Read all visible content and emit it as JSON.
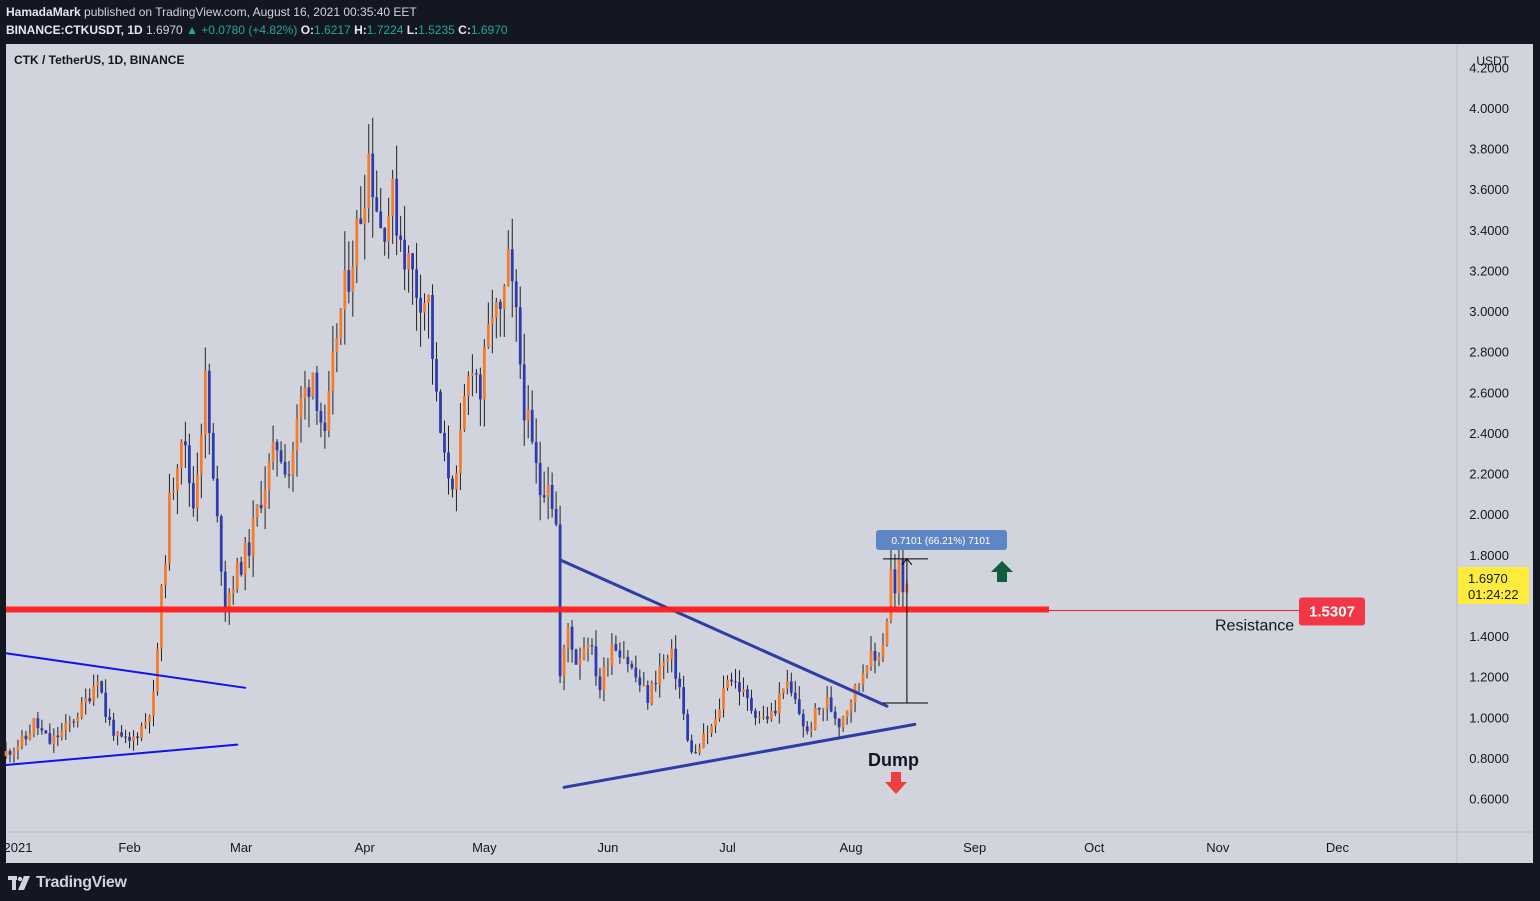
{
  "header": {
    "author": "HamadaMark",
    "published_text": " published on TradingView.com, August 16, 2021 00:35:40 EET",
    "symbol_line": "BINANCE:CTKUSDT, 1D",
    "last": "1.6970",
    "change": "▲ +0.0780 (+4.82%)",
    "o_label": "O:",
    "o": "1.6217",
    "h_label": "H:",
    "h": "1.7224",
    "l_label": "L:",
    "l": "1.5235",
    "c_label": "C:",
    "c": "1.6970"
  },
  "pane_title": "CTK / TetherUS, 1D, BINANCE",
  "footer": {
    "brand": "TradingView"
  },
  "colors": {
    "up": "#f57c2a",
    "down": "#2d3bb0",
    "background": "#d1d4dc",
    "resistance": "#ff1e1e",
    "trendline": "#2c3ea6",
    "wedge": "#1111ee",
    "arrow_up": "#0f5e40",
    "arrow_down": "#ef3d3d",
    "price_tag": "#ffeb3b",
    "resistance_tag": "#f23645",
    "measure_tag": "#5f86c4"
  },
  "chart_data": {
    "type": "candlestick",
    "symbol": "CTK / TetherUS",
    "interval": "1D",
    "exchange": "BINANCE",
    "y_axis_unit": "USDT",
    "y_ticks": [
      0.6,
      0.8,
      1.0,
      1.2,
      1.4,
      1.6,
      1.8,
      2.0,
      2.2,
      2.4,
      2.6,
      2.8,
      3.0,
      3.2,
      3.4,
      3.6,
      3.8,
      4.0,
      4.2
    ],
    "y_tick_labels": [
      "0.6000",
      "0.8000",
      "1.0000",
      "1.2000",
      "1.4000",
      "1.6000",
      "1.8000",
      "2.0000",
      "2.2000",
      "2.4000",
      "2.6000",
      "2.8000",
      "3.0000",
      "3.2000",
      "3.4000",
      "3.6000",
      "3.8000",
      "4.0000",
      "4.2000"
    ],
    "ylim": [
      0.44,
      4.32
    ],
    "x_axis": {
      "start": "2021-01-01",
      "end": "2021-12-31",
      "labels": [
        {
          "date": "2021-01-01",
          "text": "2021"
        },
        {
          "date": "2021-02-01",
          "text": "Feb"
        },
        {
          "date": "2021-03-01",
          "text": "Mar"
        },
        {
          "date": "2021-04-01",
          "text": "Apr"
        },
        {
          "date": "2021-05-01",
          "text": "May"
        },
        {
          "date": "2021-06-01",
          "text": "Jun"
        },
        {
          "date": "2021-07-01",
          "text": "Jul"
        },
        {
          "date": "2021-08-01",
          "text": "Aug"
        },
        {
          "date": "2021-09-01",
          "text": "Sep"
        },
        {
          "date": "2021-10-01",
          "text": "Oct"
        },
        {
          "date": "2021-11-01",
          "text": "Nov"
        },
        {
          "date": "2021-12-01",
          "text": "Dec"
        }
      ]
    },
    "close_path": [
      [
        "2021-01-01",
        0.83
      ],
      [
        "2021-01-06",
        0.9
      ],
      [
        "2021-01-08",
        0.98
      ],
      [
        "2021-01-12",
        0.88
      ],
      [
        "2021-01-16",
        0.95
      ],
      [
        "2021-01-20",
        1.05
      ],
      [
        "2021-01-22",
        1.12
      ],
      [
        "2021-01-24",
        1.22
      ],
      [
        "2021-01-26",
        1.02
      ],
      [
        "2021-01-29",
        0.9
      ],
      [
        "2021-02-01",
        0.88
      ],
      [
        "2021-02-03",
        0.93
      ],
      [
        "2021-02-05",
        0.99
      ],
      [
        "2021-02-07",
        1.1
      ],
      [
        "2021-02-09",
        1.6
      ],
      [
        "2021-02-11",
        2.05
      ],
      [
        "2021-02-14",
        2.42
      ],
      [
        "2021-02-17",
        2.05
      ],
      [
        "2021-02-20",
        2.65
      ],
      [
        "2021-02-22",
        2.15
      ],
      [
        "2021-02-25",
        1.58
      ],
      [
        "2021-02-28",
        1.72
      ],
      [
        "2021-03-03",
        1.85
      ],
      [
        "2021-03-06",
        2.1
      ],
      [
        "2021-03-10",
        2.35
      ],
      [
        "2021-03-13",
        2.22
      ],
      [
        "2021-03-16",
        2.55
      ],
      [
        "2021-03-19",
        2.72
      ],
      [
        "2021-03-22",
        2.35
      ],
      [
        "2021-03-25",
        2.9
      ],
      [
        "2021-03-28",
        3.2
      ],
      [
        "2021-03-31",
        3.5
      ],
      [
        "2021-04-02",
        3.78
      ],
      [
        "2021-04-05",
        3.42
      ],
      [
        "2021-04-08",
        3.55
      ],
      [
        "2021-04-11",
        3.3
      ],
      [
        "2021-04-14",
        3.12
      ],
      [
        "2021-04-17",
        3.05
      ],
      [
        "2021-04-19",
        2.55
      ],
      [
        "2021-04-21",
        2.25
      ],
      [
        "2021-04-24",
        2.15
      ],
      [
        "2021-04-26",
        2.55
      ],
      [
        "2021-04-28",
        2.78
      ],
      [
        "2021-04-30",
        2.6
      ],
      [
        "2021-05-03",
        3.02
      ],
      [
        "2021-05-05",
        2.95
      ],
      [
        "2021-05-07",
        3.22
      ],
      [
        "2021-05-09",
        2.95
      ],
      [
        "2021-05-11",
        2.55
      ],
      [
        "2021-05-13",
        2.32
      ],
      [
        "2021-05-15",
        2.12
      ],
      [
        "2021-05-17",
        2.2
      ],
      [
        "2021-05-19",
        1.95
      ],
      [
        "2021-05-20",
        1.2
      ],
      [
        "2021-05-22",
        1.45
      ],
      [
        "2021-05-24",
        1.28
      ],
      [
        "2021-05-27",
        1.4
      ],
      [
        "2021-05-30",
        1.15
      ],
      [
        "2021-06-02",
        1.38
      ],
      [
        "2021-06-05",
        1.32
      ],
      [
        "2021-06-08",
        1.2
      ],
      [
        "2021-06-11",
        1.1
      ],
      [
        "2021-06-14",
        1.25
      ],
      [
        "2021-06-17",
        1.3
      ],
      [
        "2021-06-19",
        1.15
      ],
      [
        "2021-06-21",
        0.88
      ],
      [
        "2021-06-23",
        0.82
      ],
      [
        "2021-06-25",
        0.9
      ],
      [
        "2021-06-28",
        0.98
      ],
      [
        "2021-07-01",
        1.22
      ],
      [
        "2021-07-04",
        1.15
      ],
      [
        "2021-07-07",
        1.05
      ],
      [
        "2021-07-10",
        1.0
      ],
      [
        "2021-07-13",
        1.03
      ],
      [
        "2021-07-15",
        1.18
      ],
      [
        "2021-07-18",
        1.08
      ],
      [
        "2021-07-21",
        0.92
      ],
      [
        "2021-07-23",
        1.02
      ],
      [
        "2021-07-26",
        1.08
      ],
      [
        "2021-07-29",
        0.98
      ],
      [
        "2021-08-01",
        1.1
      ],
      [
        "2021-08-03",
        1.18
      ],
      [
        "2021-08-05",
        1.3
      ],
      [
        "2021-08-07",
        1.28
      ],
      [
        "2021-08-09",
        1.38
      ],
      [
        "2021-08-10",
        1.5
      ],
      [
        "2021-08-11",
        1.72
      ],
      [
        "2021-08-12",
        1.6
      ],
      [
        "2021-08-13",
        1.75
      ],
      [
        "2021-08-14",
        1.62
      ],
      [
        "2021-08-15",
        1.7
      ]
    ],
    "annotations": {
      "resistance": {
        "price": 1.5307,
        "label": "Resistance",
        "value_label": "1.5307"
      },
      "last_price": {
        "value": "1.6970",
        "countdown": "01:24:22"
      },
      "measure": {
        "label": "0.7101 (66.21%) 7101",
        "from": 1.075,
        "to": 1.785,
        "date": "2021-08-15"
      },
      "dump_label": "Dump",
      "descending_trendline": [
        [
          "2021-05-20",
          1.78
        ],
        [
          "2021-08-10",
          1.06
        ]
      ],
      "ascending_support": [
        [
          "2021-05-21",
          0.66
        ],
        [
          "2021-08-17",
          0.97
        ]
      ],
      "wedge_upper": [
        [
          "2021-01-01",
          1.32
        ],
        [
          "2021-03-02",
          1.15
        ]
      ],
      "wedge_lower": [
        [
          "2021-01-01",
          0.77
        ],
        [
          "2021-02-28",
          0.87
        ]
      ]
    }
  }
}
